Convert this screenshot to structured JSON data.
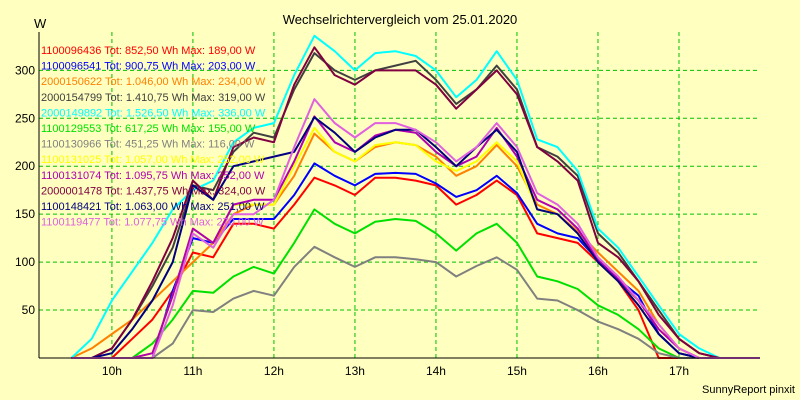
{
  "chart_data": {
    "type": "line",
    "title": "Wechselrichtervergleich vom 25.01.2020",
    "ylabel": "W",
    "xlabel": "",
    "footer": "SunnyReport pinxit",
    "xlim": [
      9.1,
      18.0
    ],
    "ylim": [
      0,
      340
    ],
    "x_ticks": [
      {
        "v": 10,
        "label": "10h"
      },
      {
        "v": 11,
        "label": "11h"
      },
      {
        "v": 12,
        "label": "12h"
      },
      {
        "v": 13,
        "label": "13h"
      },
      {
        "v": 14,
        "label": "14h"
      },
      {
        "v": 15,
        "label": "15h"
      },
      {
        "v": 16,
        "label": "16h"
      },
      {
        "v": 17,
        "label": "17h"
      }
    ],
    "y_ticks": [
      50,
      100,
      150,
      200,
      250,
      300
    ],
    "grid": true,
    "legend_position": "top-left",
    "x": [
      9.5,
      9.75,
      10.0,
      10.25,
      10.5,
      10.75,
      11.0,
      11.25,
      11.5,
      11.75,
      12.0,
      12.25,
      12.5,
      12.75,
      13.0,
      13.25,
      13.5,
      13.75,
      14.0,
      14.25,
      14.5,
      14.75,
      15.0,
      15.25,
      15.5,
      15.75,
      16.0,
      16.25,
      16.5,
      16.75,
      17.0,
      17.25,
      17.5,
      17.75,
      18.0
    ],
    "series": [
      {
        "name": "1100096436 Tot: 852,50 Wh Max: 189,00 W",
        "color": "#FF0000",
        "values": [
          0,
          0,
          0,
          20,
          40,
          70,
          110,
          105,
          140,
          140,
          135,
          160,
          188,
          180,
          170,
          188,
          188,
          185,
          180,
          160,
          170,
          185,
          170,
          130,
          125,
          120,
          100,
          80,
          50,
          0,
          0,
          0,
          0,
          0,
          0
        ]
      },
      {
        "name": "1100096541 Tot: 900,75 Wh Max: 203,00 W",
        "color": "#0000FF",
        "values": [
          0,
          0,
          0,
          0,
          0,
          70,
          125,
          120,
          145,
          145,
          145,
          170,
          203,
          190,
          180,
          192,
          193,
          192,
          182,
          168,
          175,
          190,
          172,
          140,
          130,
          125,
          102,
          82,
          65,
          25,
          5,
          0,
          0,
          0,
          0
        ]
      },
      {
        "name": "2000150622 Tot: 1.046,00 Wh Max: 234,00 W",
        "color": "#FF8000",
        "values": [
          0,
          10,
          25,
          40,
          60,
          80,
          100,
          120,
          150,
          160,
          160,
          190,
          234,
          215,
          205,
          220,
          225,
          222,
          210,
          190,
          200,
          222,
          200,
          160,
          150,
          132,
          110,
          90,
          70,
          35,
          10,
          0,
          0,
          0,
          0
        ]
      },
      {
        "name": "2000154799 Tot: 1.410,75 Wh Max: 319,00 W",
        "color": "#404040",
        "values": [
          0,
          0,
          10,
          40,
          75,
          115,
          180,
          175,
          215,
          235,
          230,
          280,
          318,
          300,
          290,
          300,
          305,
          310,
          290,
          265,
          280,
          305,
          280,
          220,
          210,
          190,
          130,
          110,
          80,
          50,
          20,
          5,
          0,
          0,
          0
        ]
      },
      {
        "name": "2000149892 Tot: 1.526,50 Wh Max: 336,00 W",
        "color": "#00FFFF",
        "values": [
          0,
          20,
          60,
          90,
          120,
          155,
          175,
          185,
          225,
          240,
          245,
          295,
          336,
          320,
          300,
          318,
          320,
          315,
          300,
          272,
          290,
          320,
          290,
          228,
          220,
          195,
          135,
          115,
          85,
          55,
          25,
          10,
          0,
          0,
          0
        ]
      },
      {
        "name": "1100129553 Tot: 617,25 Wh Max: 155,00 W",
        "color": "#00E000",
        "values": [
          0,
          0,
          0,
          0,
          15,
          40,
          70,
          68,
          85,
          95,
          88,
          120,
          155,
          140,
          130,
          142,
          145,
          143,
          130,
          112,
          130,
          140,
          120,
          85,
          80,
          72,
          55,
          45,
          30,
          10,
          0,
          0,
          0,
          0,
          0
        ]
      },
      {
        "name": "1100130966 Tot: 451,25 Wh Max: 116,00 W",
        "color": "#808080",
        "values": [
          0,
          0,
          0,
          0,
          0,
          15,
          50,
          48,
          62,
          70,
          65,
          95,
          116,
          105,
          95,
          105,
          105,
          103,
          100,
          85,
          96,
          105,
          92,
          62,
          60,
          50,
          38,
          30,
          20,
          5,
          0,
          0,
          0,
          0,
          0
        ]
      },
      {
        "name": "1100131025 Tot: 1.057,00 Wh Max: 252,00 W",
        "color": "#FFFF00",
        "values": [
          0,
          0,
          0,
          0,
          5,
          65,
          135,
          120,
          160,
          160,
          160,
          200,
          240,
          215,
          205,
          222,
          225,
          222,
          205,
          195,
          205,
          225,
          205,
          155,
          150,
          130,
          100,
          80,
          60,
          30,
          10,
          0,
          0,
          0,
          0
        ]
      },
      {
        "name": "1100131074 Tot: 1.095,75 Wh Max: 252,00 W",
        "color": "#B000B0",
        "values": [
          0,
          0,
          0,
          0,
          5,
          65,
          135,
          120,
          160,
          165,
          165,
          205,
          252,
          225,
          215,
          232,
          238,
          235,
          215,
          200,
          210,
          240,
          210,
          165,
          155,
          135,
          102,
          82,
          60,
          30,
          10,
          0,
          0,
          0,
          0
        ]
      },
      {
        "name": "2000001478 Tot: 1.437,75 Wh Max: 324,00 W",
        "color": "#800040",
        "values": [
          0,
          0,
          10,
          40,
          80,
          125,
          185,
          165,
          220,
          230,
          225,
          285,
          324,
          295,
          285,
          300,
          300,
          300,
          285,
          260,
          280,
          300,
          275,
          220,
          205,
          185,
          120,
          105,
          80,
          45,
          20,
          5,
          0,
          0,
          0
        ]
      },
      {
        "name": "1100148421 Tot: 1.063,00 Wh Max: 251,00 W",
        "color": "#000080",
        "values": [
          0,
          0,
          5,
          30,
          60,
          100,
          180,
          165,
          200,
          205,
          210,
          215,
          251,
          235,
          215,
          230,
          238,
          238,
          220,
          200,
          220,
          238,
          215,
          155,
          150,
          130,
          100,
          80,
          55,
          25,
          5,
          0,
          0,
          0,
          0
        ]
      },
      {
        "name": "1100119477 Tot: 1.077,75 Wh Max: 270,00 W",
        "color": "#E060E0",
        "values": [
          0,
          0,
          0,
          0,
          0,
          55,
          130,
          115,
          150,
          150,
          165,
          220,
          270,
          245,
          230,
          245,
          245,
          238,
          225,
          205,
          220,
          245,
          220,
          172,
          160,
          140,
          105,
          85,
          60,
          35,
          10,
          0,
          0,
          0,
          0
        ]
      }
    ]
  }
}
